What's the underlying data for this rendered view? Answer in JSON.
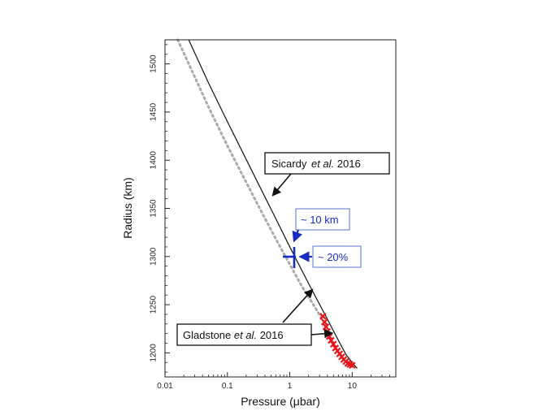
{
  "chart_data": {
    "type": "line",
    "title": "",
    "xlabel": "Pressure (μbar)",
    "ylabel": "Radius (km)",
    "xscale": "log",
    "xlim": [
      0.01,
      50
    ],
    "ylim": [
      1175,
      1525
    ],
    "x_ticks": [
      0.01,
      0.1,
      1,
      10
    ],
    "x_tick_labels": [
      "0.01",
      "0.1",
      "1",
      "10"
    ],
    "y_ticks": [
      1200,
      1250,
      1300,
      1350,
      1400,
      1450,
      1500
    ],
    "y_tick_labels": [
      "1200",
      "1250",
      "1300",
      "1350",
      "1400",
      "1450",
      "1500"
    ],
    "grid": false,
    "series": [
      {
        "name": "Sicardy et al. 2016",
        "style": "solid",
        "color": "#111111",
        "x": [
          0.024,
          0.05,
          0.1,
          0.3,
          0.6,
          1.0,
          2.0,
          4.0,
          6.0,
          8.0,
          10.0,
          12.0
        ],
        "y": [
          1525,
          1480,
          1440,
          1378,
          1339,
          1310,
          1272,
          1235,
          1213,
          1198,
          1190,
          1184
        ]
      },
      {
        "name": "Gladstone et al. 2016",
        "style": "dotted",
        "color": "#aaaaaa",
        "x": [
          0.016,
          0.05,
          0.1,
          0.3,
          0.6,
          1.0,
          1.5,
          2.5,
          4.0
        ],
        "y": [
          1525,
          1455,
          1415,
          1355,
          1318,
          1292,
          1271,
          1248,
          1226
        ]
      },
      {
        "name": "",
        "style": "markers",
        "color": "#e8141b",
        "x": [
          3.4,
          3.6,
          3.8,
          4.0,
          4.3,
          4.6,
          5.0,
          5.4,
          5.8,
          6.3,
          6.8,
          7.3,
          7.9,
          8.5,
          9.2,
          10.0
        ],
        "y": [
          1238,
          1232,
          1227,
          1222,
          1217,
          1213,
          1209,
          1205,
          1202,
          1199,
          1196,
          1193,
          1191,
          1189,
          1188,
          1187
        ]
      }
    ],
    "annotations": [
      {
        "text_parts": [
          "Sicardy ",
          "et al.",
          " 2016"
        ],
        "style": "black-box"
      },
      {
        "text_parts": [
          "Gladstone ",
          "et al.",
          " 2016"
        ],
        "style": "black-box"
      },
      {
        "text": "~ 10 km",
        "style": "blue-box"
      },
      {
        "text": "~ 20%",
        "style": "blue-box"
      }
    ]
  }
}
